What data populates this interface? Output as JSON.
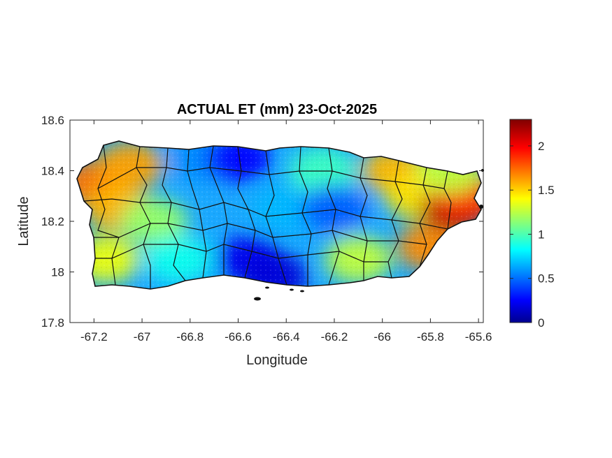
{
  "chart_data": {
    "type": "heatmap",
    "title": "ACTUAL ET (mm) 23-Oct-2025",
    "xlabel": "Longitude",
    "ylabel": "Latitude",
    "xlim": [
      -67.3,
      -65.58
    ],
    "ylim": [
      17.8,
      18.6
    ],
    "xticks": [
      -67.2,
      -67,
      -66.8,
      -66.6,
      -66.4,
      -66.2,
      -66,
      -65.8,
      -65.6
    ],
    "xtick_labels": [
      "-67.2",
      "-67",
      "-66.8",
      "-66.6",
      "-66.4",
      "-66.2",
      "-66",
      "-65.8",
      "-65.6"
    ],
    "yticks": [
      17.8,
      18,
      18.2,
      18.4,
      18.6
    ],
    "ytick_labels": [
      "17.8",
      "18",
      "18.2",
      "18.4",
      "18.6"
    ],
    "colorbar": {
      "colormap": "jet",
      "range": [
        0,
        2.3
      ],
      "ticks": [
        0,
        0.5,
        1,
        1.5,
        2
      ],
      "tick_labels": [
        "0",
        "0.5",
        "1",
        "1.5",
        "2"
      ],
      "colors": [
        "#00008f",
        "#0000ff",
        "#00ffff",
        "#ffff00",
        "#ff0000",
        "#800000"
      ]
    },
    "field_samples": [
      {
        "lon": -67.2,
        "lat": 18.35,
        "value": 1.75
      },
      {
        "lon": -67.05,
        "lat": 18.42,
        "value": 1.65
      },
      {
        "lon": -67.1,
        "lat": 18.25,
        "value": 1.6
      },
      {
        "lon": -67.15,
        "lat": 18.05,
        "value": 1.4
      },
      {
        "lon": -66.95,
        "lat": 18.2,
        "value": 1.2
      },
      {
        "lon": -66.85,
        "lat": 18.05,
        "value": 0.9
      },
      {
        "lon": -66.75,
        "lat": 18.45,
        "value": 0.6
      },
      {
        "lon": -66.6,
        "lat": 18.45,
        "value": 0.3
      },
      {
        "lon": -66.55,
        "lat": 18.05,
        "value": 0.25
      },
      {
        "lon": -66.45,
        "lat": 17.98,
        "value": 0.2
      },
      {
        "lon": -66.4,
        "lat": 18.25,
        "value": 0.7
      },
      {
        "lon": -66.25,
        "lat": 18.4,
        "value": 1.0
      },
      {
        "lon": -66.2,
        "lat": 18.25,
        "value": 0.5
      },
      {
        "lon": -66.1,
        "lat": 18.05,
        "value": 1.3
      },
      {
        "lon": -65.95,
        "lat": 18.4,
        "value": 1.6
      },
      {
        "lon": -65.85,
        "lat": 18.3,
        "value": 1.5
      },
      {
        "lon": -65.8,
        "lat": 18.1,
        "value": 1.7
      },
      {
        "lon": -65.7,
        "lat": 18.25,
        "value": 2.2
      },
      {
        "lon": -65.65,
        "lat": 18.3,
        "value": 1.9
      },
      {
        "lon": -65.72,
        "lat": 18.4,
        "value": 1.3
      }
    ]
  }
}
